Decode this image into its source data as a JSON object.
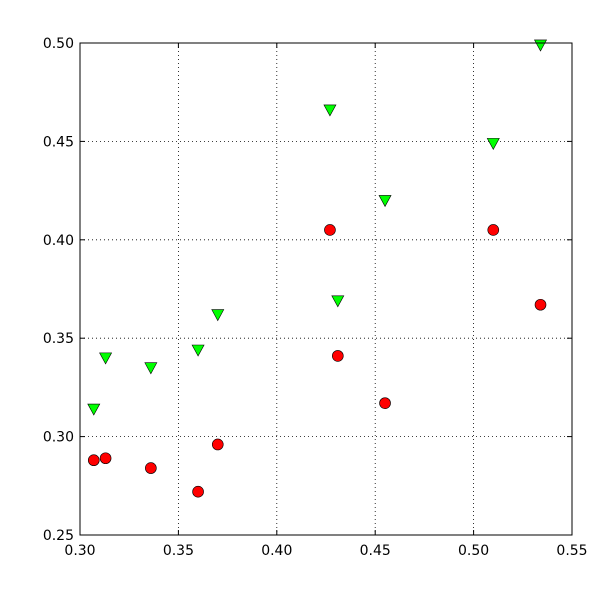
{
  "chart_data": {
    "type": "scatter",
    "title": "",
    "xlabel": "",
    "ylabel": "",
    "xlim": [
      0.3,
      0.55
    ],
    "ylim": [
      0.25,
      0.5
    ],
    "xticks": [
      "0.30",
      "0.35",
      "0.40",
      "0.45",
      "0.50",
      "0.55"
    ],
    "yticks": [
      "0.25",
      "0.30",
      "0.35",
      "0.40",
      "0.45",
      "0.50"
    ],
    "grid": true,
    "series": [
      {
        "marker": "circle",
        "color": "#ff0000",
        "points": [
          [
            0.307,
            0.288
          ],
          [
            0.313,
            0.289
          ],
          [
            0.336,
            0.284
          ],
          [
            0.36,
            0.272
          ],
          [
            0.37,
            0.296
          ],
          [
            0.427,
            0.405
          ],
          [
            0.431,
            0.341
          ],
          [
            0.455,
            0.317
          ],
          [
            0.51,
            0.405
          ],
          [
            0.534,
            0.367
          ]
        ]
      },
      {
        "marker": "triangle-down",
        "color": "#00ff00",
        "points": [
          [
            0.307,
            0.314
          ],
          [
            0.313,
            0.34
          ],
          [
            0.336,
            0.335
          ],
          [
            0.36,
            0.344
          ],
          [
            0.37,
            0.362
          ],
          [
            0.427,
            0.466
          ],
          [
            0.431,
            0.369
          ],
          [
            0.455,
            0.42
          ],
          [
            0.51,
            0.449
          ],
          [
            0.534,
            0.499
          ]
        ]
      }
    ]
  }
}
